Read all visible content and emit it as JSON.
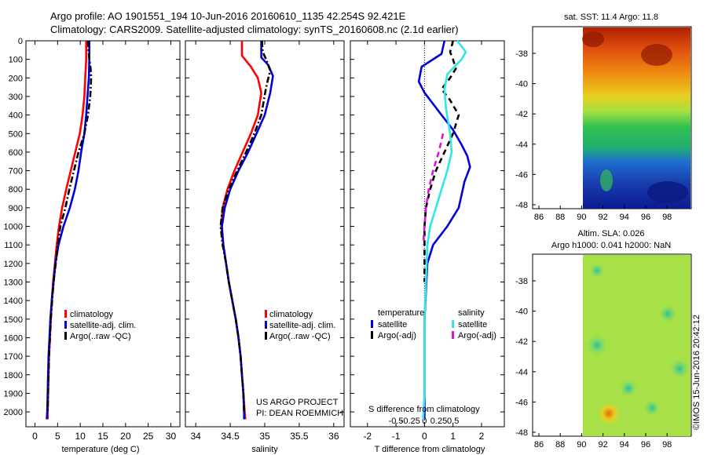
{
  "header": {
    "line1": "Argo profile: AO 1901551_194 10-Jun-2016 20160610_1135 42.254S 92.421E",
    "line2": "Climatology: CARS2009. Satellite-adjusted climatology: synTS_20160608.nc (2.1d earlier)"
  },
  "colors": {
    "clim": "#ff0000",
    "sat": "#0000dd",
    "argo": "#000000",
    "sal_sat": "#33e6e6",
    "sal_argo": "#e010e0"
  },
  "chart_data": [
    {
      "type": "line",
      "id": "temperature",
      "xlabel": "temperature (deg C)",
      "ylabel": "",
      "xlim": [
        -2,
        32
      ],
      "ylim": [
        2080,
        0
      ],
      "x_ticks": [
        0,
        5,
        10,
        15,
        20,
        25,
        30
      ],
      "y_ticks": [
        0,
        100,
        200,
        300,
        400,
        500,
        600,
        700,
        800,
        900,
        1000,
        1100,
        1200,
        1300,
        1400,
        1500,
        1600,
        1700,
        1800,
        1900,
        2000
      ],
      "legend": [
        "climatology",
        "satellite-adj. clim.",
        "Argo(..raw -QC)"
      ],
      "series": [
        {
          "name": "climatology",
          "style": "solid",
          "points": [
            [
              11.3,
              0
            ],
            [
              11.3,
              100
            ],
            [
              11.1,
              200
            ],
            [
              10.9,
              300
            ],
            [
              10.5,
              400
            ],
            [
              9.9,
              500
            ],
            [
              8.9,
              600
            ],
            [
              7.9,
              700
            ],
            [
              6.9,
              800
            ],
            [
              6.0,
              900
            ],
            [
              5.3,
              1000
            ],
            [
              4.8,
              1100
            ],
            [
              4.4,
              1200
            ],
            [
              4.0,
              1300
            ],
            [
              3.7,
              1400
            ],
            [
              3.5,
              1500
            ],
            [
              3.3,
              1600
            ],
            [
              3.1,
              1700
            ],
            [
              3.0,
              1800
            ],
            [
              2.9,
              1900
            ],
            [
              2.8,
              2000
            ],
            [
              2.8,
              2040
            ]
          ]
        },
        {
          "name": "satellite-adj. clim.",
          "style": "solid",
          "points": [
            [
              12.0,
              0
            ],
            [
              12.0,
              100
            ],
            [
              11.9,
              200
            ],
            [
              11.6,
              300
            ],
            [
              11.3,
              400
            ],
            [
              10.9,
              500
            ],
            [
              10.2,
              600
            ],
            [
              9.6,
              700
            ],
            [
              8.8,
              800
            ],
            [
              7.7,
              900
            ],
            [
              6.3,
              1000
            ],
            [
              5.2,
              1100
            ],
            [
              4.5,
              1200
            ],
            [
              4.1,
              1300
            ],
            [
              3.7,
              1400
            ],
            [
              3.4,
              1500
            ],
            [
              3.2,
              1600
            ],
            [
              3.0,
              1700
            ],
            [
              2.9,
              1800
            ],
            [
              2.8,
              1900
            ],
            [
              2.7,
              2000
            ],
            [
              2.6,
              2040
            ]
          ]
        },
        {
          "name": "Argo(..raw -QC)",
          "style": "dashdot",
          "points": [
            [
              11.7,
              0
            ],
            [
              11.8,
              50
            ],
            [
              12.0,
              100
            ],
            [
              12.3,
              150
            ],
            [
              12.4,
              200
            ],
            [
              12.2,
              300
            ],
            [
              11.7,
              400
            ],
            [
              10.9,
              500
            ],
            [
              9.6,
              600
            ],
            [
              8.6,
              700
            ],
            [
              7.6,
              800
            ],
            [
              6.7,
              900
            ],
            [
              5.6,
              1000
            ],
            [
              5.0,
              1100
            ],
            [
              4.6,
              1200
            ],
            [
              4.1,
              1300
            ],
            [
              3.8,
              1400
            ],
            [
              3.5,
              1500
            ],
            [
              3.3,
              1600
            ],
            [
              3.1,
              1700
            ],
            [
              3.0,
              1800
            ],
            [
              2.9,
              1900
            ],
            [
              2.8,
              2000
            ]
          ]
        }
      ]
    },
    {
      "type": "line",
      "id": "salinity",
      "xlabel": "salinity",
      "ylabel": "",
      "xlim": [
        33.85,
        36.15
      ],
      "ylim": [
        2080,
        0
      ],
      "x_ticks": [
        34,
        34.5,
        35,
        35.5,
        36
      ],
      "legend": [
        "climatology",
        "satellite-adj. clim.",
        "Argo(..raw -QC)"
      ],
      "annotation": [
        "US ARGO PROJECT",
        "PI: DEAN ROEMMICH"
      ],
      "series": [
        {
          "name": "climatology",
          "style": "solid",
          "points": [
            [
              34.67,
              0
            ],
            [
              34.67,
              80
            ],
            [
              34.8,
              140
            ],
            [
              34.9,
              200
            ],
            [
              34.95,
              280
            ],
            [
              34.9,
              400
            ],
            [
              34.8,
              500
            ],
            [
              34.68,
              600
            ],
            [
              34.56,
              700
            ],
            [
              34.46,
              800
            ],
            [
              34.39,
              900
            ],
            [
              34.37,
              1000
            ],
            [
              34.4,
              1100
            ],
            [
              34.44,
              1200
            ],
            [
              34.48,
              1300
            ],
            [
              34.53,
              1400
            ],
            [
              34.58,
              1500
            ],
            [
              34.62,
              1600
            ],
            [
              34.65,
              1700
            ],
            [
              34.67,
              1800
            ],
            [
              34.69,
              1900
            ],
            [
              34.71,
              2000
            ],
            [
              34.72,
              2040
            ]
          ]
        },
        {
          "name": "satellite-adj. clim.",
          "style": "solid",
          "points": [
            [
              34.95,
              0
            ],
            [
              34.95,
              90
            ],
            [
              35.05,
              130
            ],
            [
              35.12,
              190
            ],
            [
              35.08,
              280
            ],
            [
              35.0,
              400
            ],
            [
              34.88,
              500
            ],
            [
              34.76,
              600
            ],
            [
              34.62,
              700
            ],
            [
              34.5,
              800
            ],
            [
              34.42,
              900
            ],
            [
              34.38,
              1000
            ],
            [
              34.4,
              1100
            ],
            [
              34.44,
              1200
            ],
            [
              34.48,
              1300
            ],
            [
              34.53,
              1400
            ],
            [
              34.58,
              1500
            ],
            [
              34.62,
              1600
            ],
            [
              34.65,
              1700
            ],
            [
              34.67,
              1800
            ],
            [
              34.69,
              1900
            ],
            [
              34.7,
              2000
            ],
            [
              34.7,
              2040
            ]
          ]
        },
        {
          "name": "Argo(..raw -QC)",
          "style": "dashdot",
          "points": [
            [
              34.96,
              0
            ],
            [
              34.97,
              60
            ],
            [
              35.02,
              100
            ],
            [
              35.08,
              160
            ],
            [
              35.02,
              250
            ],
            [
              34.95,
              400
            ],
            [
              34.85,
              500
            ],
            [
              34.73,
              600
            ],
            [
              34.6,
              700
            ],
            [
              34.48,
              800
            ],
            [
              34.39,
              900
            ],
            [
              34.36,
              1000
            ],
            [
              34.39,
              1100
            ],
            [
              34.44,
              1200
            ],
            [
              34.48,
              1300
            ],
            [
              34.53,
              1400
            ],
            [
              34.58,
              1500
            ],
            [
              34.62,
              1600
            ],
            [
              34.65,
              1700
            ],
            [
              34.67,
              1800
            ],
            [
              34.69,
              1900
            ],
            [
              34.7,
              2000
            ]
          ]
        }
      ]
    },
    {
      "type": "line",
      "id": "differences",
      "xlabel": "T difference from climatology",
      "x2label": "S difference from climatology",
      "xlim": [
        -2.6,
        2.8
      ],
      "ylim": [
        2080,
        0
      ],
      "x_ticks": [
        -2,
        -1,
        0,
        1,
        2
      ],
      "x2_ticks": [
        "-0.5",
        "-0.25",
        "0",
        "0.25",
        "0.5"
      ],
      "legend_headers": [
        "temperature",
        "salinity"
      ],
      "legend": [
        "satellite",
        "Argo(-adj)",
        "satellite",
        "Argo(-adj)"
      ],
      "series": [
        {
          "name": "temperature satellite",
          "style": "solid",
          "points": [
            [
              0.7,
              0
            ],
            [
              0.6,
              70
            ],
            [
              -0.1,
              140
            ],
            [
              -0.2,
              220
            ],
            [
              0.0,
              280
            ],
            [
              0.3,
              340
            ],
            [
              0.6,
              400
            ],
            [
              1.0,
              480
            ],
            [
              1.3,
              560
            ],
            [
              1.5,
              620
            ],
            [
              1.6,
              680
            ],
            [
              1.4,
              760
            ],
            [
              1.3,
              830
            ],
            [
              1.2,
              900
            ],
            [
              0.8,
              1000
            ],
            [
              0.3,
              1100
            ],
            [
              0.1,
              1200
            ],
            [
              0.05,
              1350
            ],
            [
              0.0,
              1500
            ],
            [
              0.0,
              2040
            ]
          ]
        },
        {
          "name": "temperature Argo(-adj)",
          "style": "dashed",
          "points": [
            [
              1.0,
              0
            ],
            [
              0.9,
              60
            ],
            [
              1.0,
              100
            ],
            [
              1.1,
              150
            ],
            [
              0.9,
              200
            ],
            [
              0.6,
              260
            ],
            [
              0.9,
              320
            ],
            [
              1.2,
              400
            ],
            [
              1.0,
              500
            ],
            [
              0.7,
              600
            ],
            [
              0.4,
              700
            ],
            [
              0.2,
              800
            ],
            [
              0.05,
              900
            ],
            [
              0.0,
              1000
            ],
            [
              0.0,
              1100
            ],
            [
              0.0,
              1300
            ]
          ]
        },
        {
          "name": "salinity satellite",
          "style": "solid",
          "points": [
            [
              1.15,
              0
            ],
            [
              1.45,
              60
            ],
            [
              1.3,
              100
            ],
            [
              0.8,
              180
            ],
            [
              0.7,
              260
            ],
            [
              0.75,
              360
            ],
            [
              0.9,
              500
            ],
            [
              0.95,
              600
            ],
            [
              0.8,
              700
            ],
            [
              0.6,
              800
            ],
            [
              0.4,
              900
            ],
            [
              0.2,
              1000
            ],
            [
              0.1,
              1100
            ],
            [
              0.05,
              1300
            ],
            [
              0.0,
              1500
            ],
            [
              0.0,
              1900
            ],
            [
              -0.05,
              2040
            ]
          ]
        },
        {
          "name": "salinity Argo(-adj)",
          "style": "dashed",
          "points": [
            [
              0.65,
              500
            ],
            [
              0.5,
              600
            ],
            [
              0.3,
              700
            ],
            [
              0.15,
              800
            ],
            [
              0.05,
              900
            ],
            [
              0.0,
              1000
            ],
            [
              -0.05,
              1100
            ]
          ]
        }
      ]
    },
    {
      "type": "heatmap",
      "id": "sst-map",
      "title": "sat. SST: 11.4  Argo: 11.8",
      "x_ticks": [
        "86",
        "88",
        "90",
        "92",
        "94",
        "96",
        "98"
      ],
      "y_ticks": [
        "-38",
        "-40",
        "-42",
        "-44",
        "-46",
        "-48"
      ]
    },
    {
      "type": "heatmap",
      "id": "sla-map",
      "title1": "Altim. SLA: 0.026",
      "title2": "Argo h1000: 0.041  h2000: NaN",
      "x_ticks": [
        "86",
        "88",
        "90",
        "92",
        "94",
        "96",
        "98"
      ],
      "y_ticks": [
        "-38",
        "-40",
        "-42",
        "-44",
        "-46",
        "-48"
      ]
    }
  ],
  "footer": {
    "stamp": "©IMOS 15-Jun-2016 20:42:12"
  }
}
